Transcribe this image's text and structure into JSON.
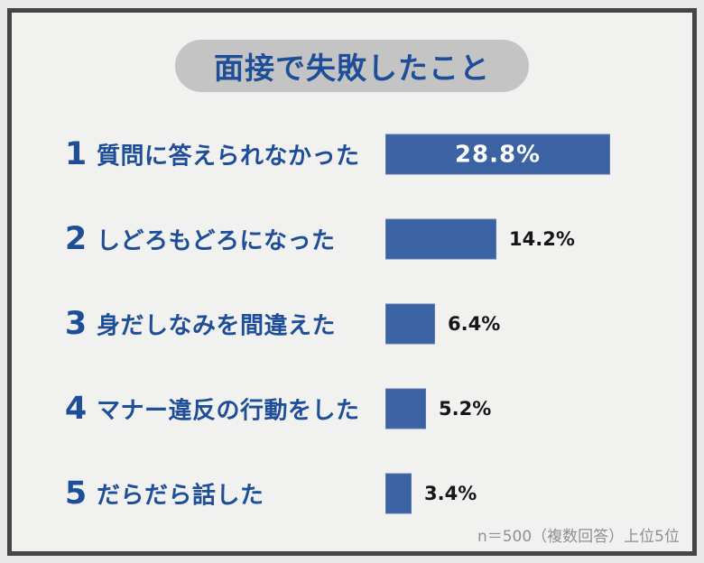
{
  "chart_data": {
    "type": "bar",
    "orientation": "horizontal",
    "title": "面接で失敗したこと",
    "ranks": [
      "1",
      "2",
      "3",
      "4",
      "5"
    ],
    "categories": [
      "質問に答えられなかった",
      "しどろもどろになった",
      "身だしなみを間違えた",
      "マナー違反の行動をした",
      "だらだら話した"
    ],
    "values": [
      28.8,
      14.2,
      6.4,
      5.2,
      3.4
    ],
    "value_labels": [
      "28.8%",
      "14.2%",
      "6.4%",
      "5.2%",
      "3.4%"
    ],
    "xlim": [
      0,
      30
    ],
    "grid": "off",
    "legend": "none",
    "footnote": "n＝500（複数回答）上位5位"
  },
  "colors": {
    "bar_fill": "#3b63a4",
    "label_blue": "#1f4e99",
    "pill_gray": "#c4c4c4",
    "card_bg": "#f1f1f0",
    "card_border": "#454545",
    "value_outside_text": "#161616",
    "value_inside_text": "#ffffff",
    "footnote_gray": "#8d9095"
  }
}
